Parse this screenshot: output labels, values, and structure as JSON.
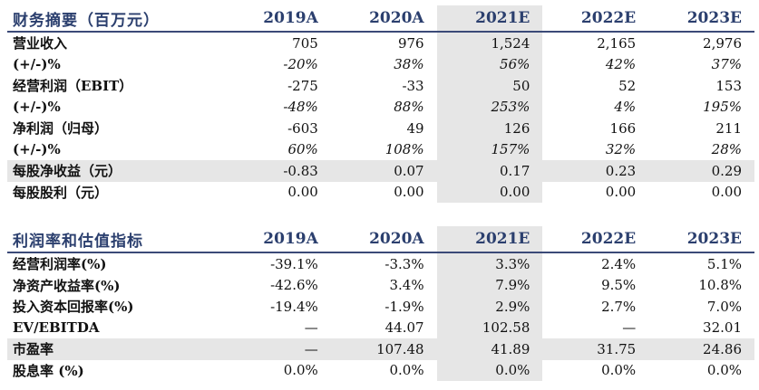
{
  "t1": {
    "title": "财务摘要（百万元）",
    "years": [
      "2019A",
      "2020A",
      "2021E",
      "2022E",
      "2023E"
    ],
    "rows": [
      {
        "label": "营业收入",
        "values": [
          "705",
          "976",
          "1,524",
          "2,165",
          "2,976"
        ]
      },
      {
        "label": "(+/-)%",
        "values": [
          "-20%",
          "38%",
          "56%",
          "42%",
          "37%"
        ]
      },
      {
        "label": "经营利润（EBIT）",
        "values": [
          "-275",
          "-33",
          "50",
          "52",
          "153"
        ]
      },
      {
        "label": "(+/-)%",
        "values": [
          "-48%",
          "88%",
          "253%",
          "4%",
          "195%"
        ]
      },
      {
        "label": "净利润（归母）",
        "values": [
          "-603",
          "49",
          "126",
          "166",
          "211"
        ]
      },
      {
        "label": "(+/-)%",
        "values": [
          "60%",
          "108%",
          "157%",
          "32%",
          "28%"
        ]
      },
      {
        "label": "每股净收益（元）",
        "values": [
          "-0.83",
          "0.07",
          "0.17",
          "0.23",
          "0.29"
        ]
      },
      {
        "label": "每股股利（元）",
        "values": [
          "0.00",
          "0.00",
          "0.00",
          "0.00",
          "0.00"
        ]
      }
    ]
  },
  "t2": {
    "title": "利润率和估值指标",
    "years": [
      "2019A",
      "2020A",
      "2021E",
      "2022E",
      "2023E"
    ],
    "rows": [
      {
        "label": "经营利润率(%)",
        "values": [
          "-39.1%",
          "-3.3%",
          "3.3%",
          "2.4%",
          "5.1%"
        ]
      },
      {
        "label": "净资产收益率(%)",
        "values": [
          "-42.6%",
          "3.4%",
          "7.9%",
          "9.5%",
          "10.8%"
        ]
      },
      {
        "label": "投入资本回报率(%)",
        "values": [
          "-19.4%",
          "-1.9%",
          "2.9%",
          "2.7%",
          "7.0%"
        ]
      },
      {
        "label": "EV/EBITDA",
        "values": [
          "—",
          "44.07",
          "102.58",
          "—",
          "32.01"
        ]
      },
      {
        "label": "市盈率",
        "values": [
          "—",
          "107.48",
          "41.89",
          "31.75",
          "24.86"
        ]
      },
      {
        "label": "股息率 (%)",
        "values": [
          "0.0%",
          "0.0%",
          "0.0%",
          "0.0%",
          "0.0%"
        ]
      }
    ]
  }
}
